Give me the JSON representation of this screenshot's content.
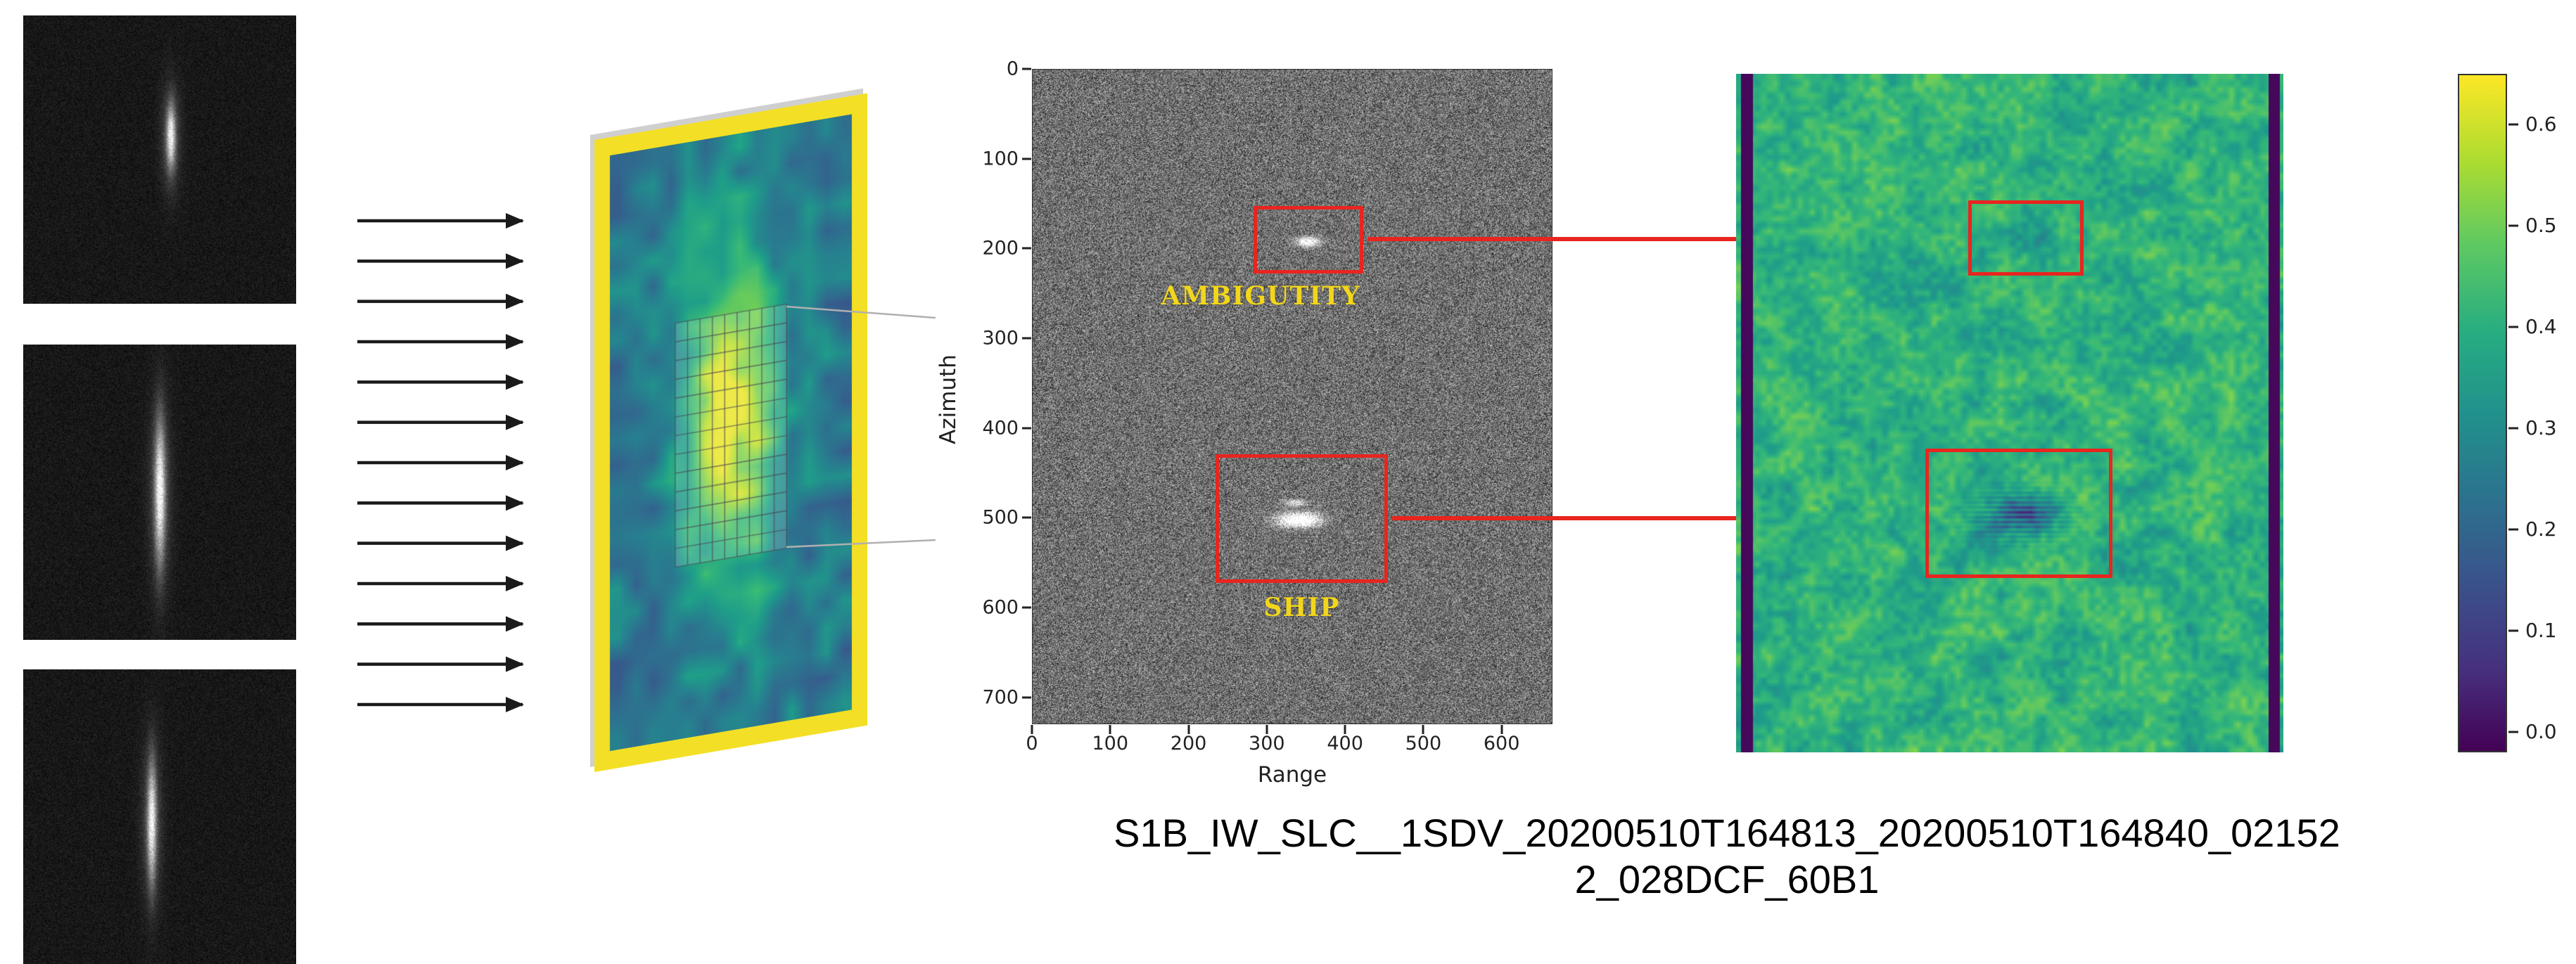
{
  "figure": {
    "caption_line1": "S1B_IW_SLC__1SDV_20200510T164813_20200510T164840_02152",
    "caption_line2": "2_028DCF_60B1"
  },
  "flow_arrows": {
    "count": 13,
    "color": "#1a1a1a"
  },
  "sar_plot": {
    "ylabel": "Azimuth",
    "xlabel": "Range",
    "yticks": [
      0,
      100,
      200,
      300,
      400,
      500,
      600,
      700
    ],
    "xticks": [
      0,
      100,
      200,
      300,
      400,
      500,
      600
    ],
    "y_axis_max": 730,
    "x_axis_max": 665,
    "annotations": [
      {
        "label": "AMBIGUTITY",
        "box_color": "#e8251f",
        "label_color": "#f2d61b"
      },
      {
        "label": "SHIP",
        "box_color": "#e8251f",
        "label_color": "#f2d61b"
      }
    ]
  },
  "link_arrows": {
    "color": "#e8251f"
  },
  "heatmap": {
    "box_color": "#e8251f"
  },
  "colorbar": {
    "tick_labels": [
      "0.6",
      "0.5",
      "0.4",
      "0.3",
      "0.2",
      "0.1",
      "0.0"
    ]
  }
}
